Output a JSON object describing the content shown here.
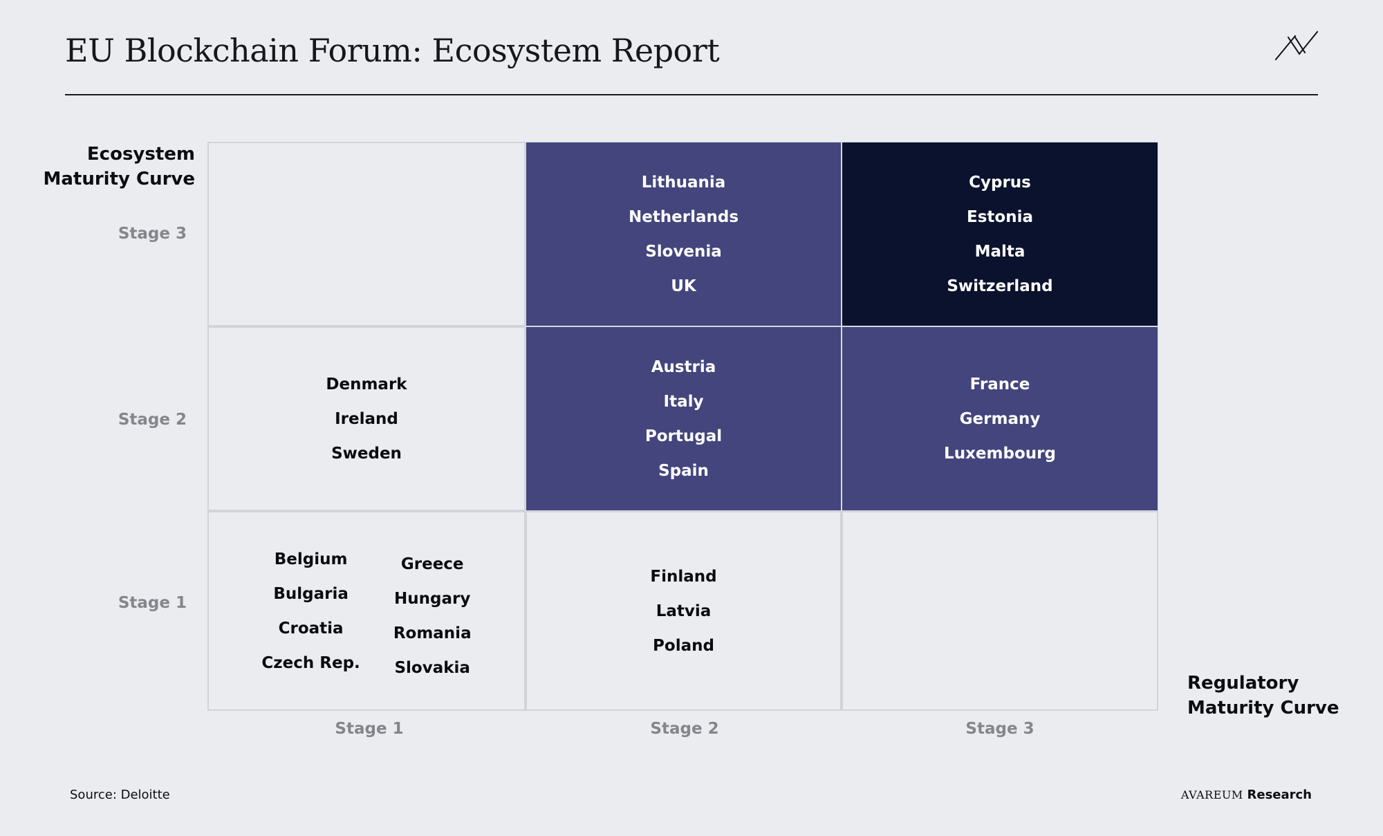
{
  "header": {
    "title": "EU Blockchain Forum: Ecosystem Report"
  },
  "footer": {
    "source": "Source: Deloitte",
    "brand_name": "AVAREUM",
    "brand_suffix": "Research"
  },
  "colors": {
    "background": "#ebecef",
    "stage2_fill": "#43457c",
    "stage3_fill": "#0b122d",
    "axis_text": "#84868c"
  },
  "chart_data": {
    "type": "table",
    "ylabel_lines": [
      "Ecosystem",
      "Maturity Curve"
    ],
    "xlabel_lines": [
      "Regulatory",
      "Maturity Curve"
    ],
    "y_ticks": [
      "Stage 3",
      "Stage 2",
      "Stage 1"
    ],
    "x_ticks": [
      "Stage 1",
      "Stage 2",
      "Stage 3"
    ],
    "cells": [
      {
        "ecosystem": "Stage 3",
        "regulatory": "Stage 1",
        "shade": "light",
        "countries": []
      },
      {
        "ecosystem": "Stage 3",
        "regulatory": "Stage 2",
        "shade": "mid",
        "countries": [
          "Lithuania",
          "Netherlands",
          "Slovenia",
          "UK"
        ]
      },
      {
        "ecosystem": "Stage 3",
        "regulatory": "Stage 3",
        "shade": "dark",
        "countries": [
          "Cyprus",
          "Estonia",
          "Malta",
          "Switzerland"
        ]
      },
      {
        "ecosystem": "Stage 2",
        "regulatory": "Stage 1",
        "shade": "light",
        "countries": [
          "Denmark",
          "Ireland",
          "Sweden"
        ]
      },
      {
        "ecosystem": "Stage 2",
        "regulatory": "Stage 2",
        "shade": "mid",
        "countries": [
          "Austria",
          "Italy",
          "Portugal",
          "Spain"
        ]
      },
      {
        "ecosystem": "Stage 2",
        "regulatory": "Stage 3",
        "shade": "mid",
        "countries": [
          "France",
          "Germany",
          "Luxembourg"
        ]
      },
      {
        "ecosystem": "Stage 1",
        "regulatory": "Stage 1",
        "shade": "light",
        "countries": [
          "Belgium",
          "Bulgaria",
          "Croatia",
          "Czech Rep.",
          "Greece",
          "Hungary",
          "Romania",
          "Slovakia"
        ]
      },
      {
        "ecosystem": "Stage 1",
        "regulatory": "Stage 2",
        "shade": "light",
        "countries": [
          "Finland",
          "Latvia",
          "Poland"
        ]
      },
      {
        "ecosystem": "Stage 1",
        "regulatory": "Stage 3",
        "shade": "light",
        "countries": []
      }
    ]
  }
}
